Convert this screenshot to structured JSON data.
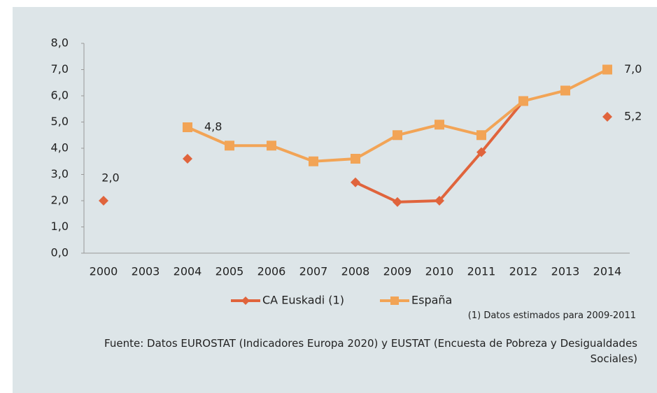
{
  "chart_data": {
    "type": "line",
    "categories": [
      "2000",
      "2003",
      "2004",
      "2005",
      "2006",
      "2007",
      "2008",
      "2009",
      "2010",
      "2011",
      "2012",
      "2013",
      "2014"
    ],
    "series": [
      {
        "name": "CA Euskadi (1)",
        "color": "#e0643c",
        "marker": "diamond",
        "values": [
          2.0,
          null,
          3.6,
          null,
          null,
          null,
          2.7,
          1.95,
          2.0,
          3.85,
          5.8,
          null,
          5.2
        ],
        "value_labels": [
          "2,0",
          null,
          null,
          null,
          null,
          null,
          null,
          null,
          null,
          null,
          null,
          null,
          "5,2"
        ]
      },
      {
        "name": "España",
        "color": "#f2a456",
        "marker": "square",
        "values": [
          null,
          null,
          4.8,
          4.1,
          4.1,
          3.5,
          3.6,
          4.5,
          4.9,
          4.5,
          5.8,
          6.2,
          7.0
        ],
        "value_labels": [
          null,
          null,
          "4,8",
          null,
          null,
          null,
          null,
          null,
          null,
          null,
          null,
          null,
          "7,0"
        ]
      }
    ],
    "ylim": [
      0,
      8
    ],
    "yticks": [
      {
        "value": 0,
        "label": "0,0"
      },
      {
        "value": 1,
        "label": "1,0"
      },
      {
        "value": 2,
        "label": "2,0"
      },
      {
        "value": 3,
        "label": "3,0"
      },
      {
        "value": 4,
        "label": "4,0"
      },
      {
        "value": 5,
        "label": "5,0"
      },
      {
        "value": 6,
        "label": "6,0"
      },
      {
        "value": 7,
        "label": "7,0"
      },
      {
        "value": 8,
        "label": "8,0"
      }
    ],
    "grid": false,
    "legend": "bottom",
    "note": "(1) Datos estimados para 2009-2011",
    "source": "Fuente: Datos EUROSTAT (Indicadores Europa 2020)  y EUSTAT (Encuesta de Pobreza y Desigualdades Sociales)"
  }
}
